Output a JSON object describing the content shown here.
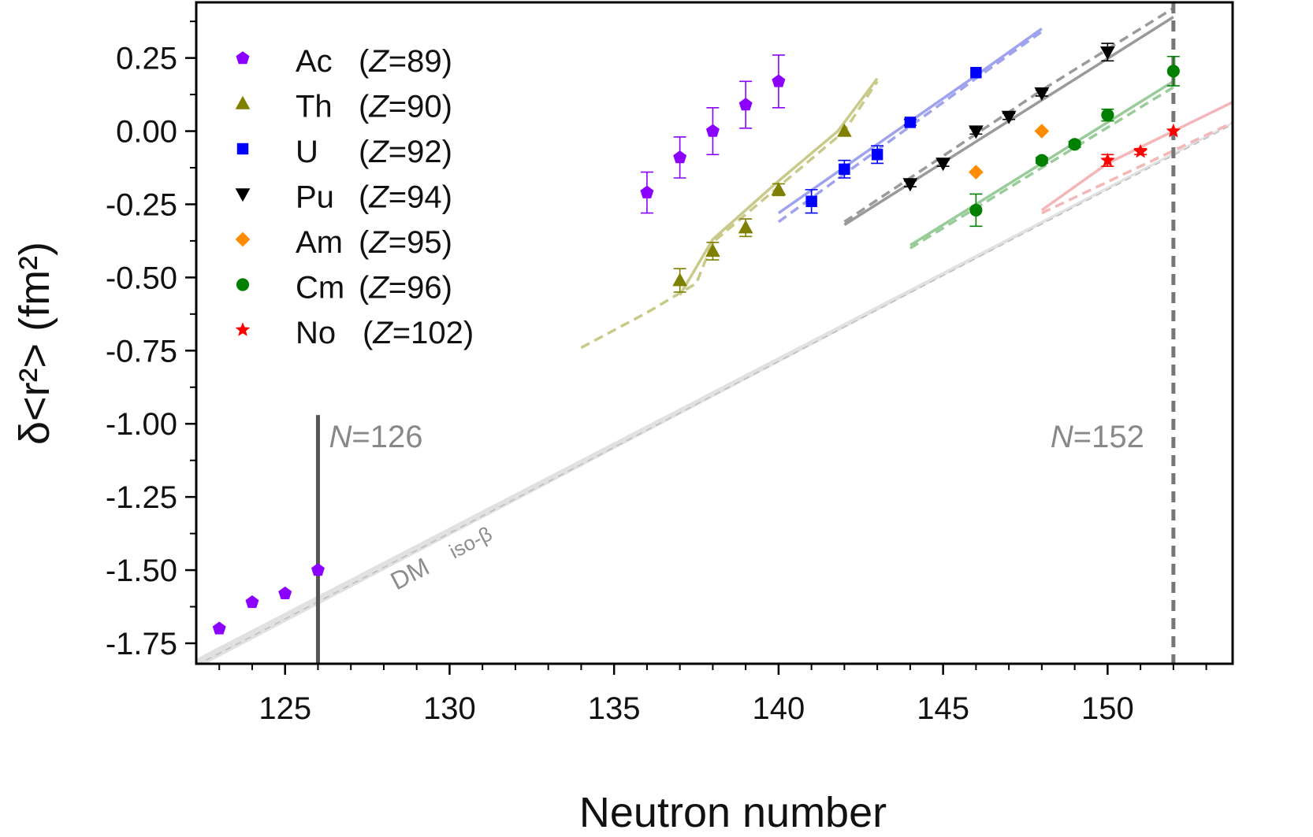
{
  "chart_data": {
    "type": "scatter",
    "title": "",
    "xlabel": "Neutron number",
    "ylabel": "δ<r²> (fm²)",
    "xlim": [
      122.3,
      153.8
    ],
    "ylim": [
      -1.82,
      0.44
    ],
    "xticks": [
      125,
      130,
      135,
      140,
      145,
      150
    ],
    "xtick_labels": [
      "125",
      "130",
      "135",
      "140",
      "145",
      "150"
    ],
    "yticks": [
      0.25,
      0.0,
      -0.25,
      -0.5,
      -0.75,
      -1.0,
      -1.25,
      -1.5,
      -1.75
    ],
    "ytick_labels": [
      "0.25",
      "0.00",
      "-0.25",
      "-0.50",
      "-0.75",
      "-1.00",
      "-1.25",
      "-1.50",
      "-1.75"
    ],
    "grid": false,
    "legend_position": "top-left",
    "series": [
      {
        "name": "Ac",
        "z_label": "(Z=89)",
        "color": "#8b00ff",
        "marker": "pentagon",
        "x": [
          123,
          124,
          125,
          126,
          136,
          137,
          138,
          139,
          140
        ],
        "y": [
          -1.7,
          -1.61,
          -1.58,
          -1.5,
          -0.21,
          -0.09,
          0.0,
          0.09,
          0.17
        ],
        "err": [
          0,
          0,
          0,
          0,
          0.07,
          0.07,
          0.08,
          0.08,
          0.09
        ]
      },
      {
        "name": "Th",
        "z_label": "(Z=90)",
        "color": "#808000",
        "marker": "triangle-up",
        "x": [
          137,
          138,
          139,
          140,
          142
        ],
        "y": [
          -0.51,
          -0.41,
          -0.33,
          -0.2,
          0.0
        ],
        "err": [
          0.04,
          0.03,
          0.03,
          0.02,
          0.0
        ]
      },
      {
        "name": "U",
        "z_label": "(Z=92)",
        "color": "#0000ff",
        "marker": "square",
        "x": [
          141,
          142,
          143,
          144,
          146
        ],
        "y": [
          -0.24,
          -0.13,
          -0.08,
          0.03,
          0.2
        ],
        "err": [
          0.04,
          0.03,
          0.03,
          0.01,
          0.0
        ]
      },
      {
        "name": "Pu",
        "z_label": "(Z=94)",
        "color": "#000000",
        "marker": "triangle-down",
        "x": [
          144,
          145,
          146,
          147,
          148,
          150
        ],
        "y": [
          -0.18,
          -0.11,
          0.0,
          0.05,
          0.13,
          0.27
        ],
        "err": [
          0.01,
          0.01,
          0.01,
          0.01,
          0.01,
          0.03
        ]
      },
      {
        "name": "Am",
        "z_label": "(Z=95)",
        "color": "#ff8c00",
        "marker": "diamond",
        "x": [
          146,
          148
        ],
        "y": [
          -0.14,
          0.0
        ],
        "err": [
          0,
          0
        ]
      },
      {
        "name": "Cm",
        "z_label": "(Z=96)",
        "color": "#008000",
        "marker": "circle",
        "x": [
          146,
          148,
          149,
          150,
          152
        ],
        "y": [
          -0.27,
          -0.1,
          -0.045,
          0.055,
          0.205
        ],
        "err": [
          0.055,
          0.01,
          0.01,
          0.02,
          0.05
        ]
      },
      {
        "name": "No",
        "z_label": "(Z=102)",
        "color": "#ff0000",
        "marker": "star",
        "x": [
          150,
          151,
          152
        ],
        "y": [
          -0.1,
          -0.07,
          0.0
        ],
        "err": [
          0.02,
          0.01,
          0.0
        ]
      }
    ],
    "model_lines": [
      {
        "color": "#c9c98a",
        "solid": [
          [
            137,
            -0.56
          ],
          [
            138,
            -0.37
          ],
          [
            140,
            -0.17
          ],
          [
            141.8,
            0.0
          ],
          [
            143,
            0.18
          ]
        ],
        "dashed": [
          [
            134,
            -0.74
          ],
          [
            136,
            -0.62
          ],
          [
            137.5,
            -0.52
          ],
          [
            138,
            -0.38
          ],
          [
            140,
            -0.19
          ],
          [
            142,
            0.0
          ],
          [
            143,
            0.17
          ]
        ]
      },
      {
        "color": "#9fa3ee",
        "solid": [
          [
            140,
            -0.28
          ],
          [
            146,
            0.19
          ],
          [
            148,
            0.35
          ]
        ],
        "dashed": [
          [
            140,
            -0.31
          ],
          [
            146,
            0.18
          ],
          [
            148,
            0.34
          ]
        ]
      },
      {
        "color": "#9a9a9a",
        "solid": [
          [
            142,
            -0.32
          ],
          [
            152,
            0.39
          ]
        ],
        "dashed": [
          [
            142,
            -0.31
          ],
          [
            148,
            0.14
          ],
          [
            152,
            0.42
          ]
        ]
      },
      {
        "color": "#99cc99",
        "solid": [
          [
            144,
            -0.39
          ],
          [
            152,
            0.17
          ]
        ],
        "dashed": [
          [
            144,
            -0.4
          ],
          [
            152,
            0.15
          ]
        ]
      },
      {
        "color": "#f4b6b6",
        "solid": [
          [
            148,
            -0.27
          ],
          [
            150,
            -0.11
          ],
          [
            154,
            0.11
          ]
        ],
        "dashed": [
          [
            148,
            -0.28
          ],
          [
            154,
            0.04
          ]
        ]
      }
    ],
    "dm_band": {
      "from": [
        122.3,
        -1.82
      ],
      "to": [
        154,
        0.04
      ],
      "width": 0.035
    },
    "dm_labels": [
      "DM",
      "iso-β"
    ],
    "reference_lines": [
      {
        "x": 126,
        "label_italic": "N",
        "label_rest": "=126",
        "style": "solid",
        "y_top": -0.97
      },
      {
        "x": 152,
        "label_italic": "N",
        "label_rest": "=152",
        "style": "dashed",
        "y_top": 0.44
      }
    ]
  }
}
